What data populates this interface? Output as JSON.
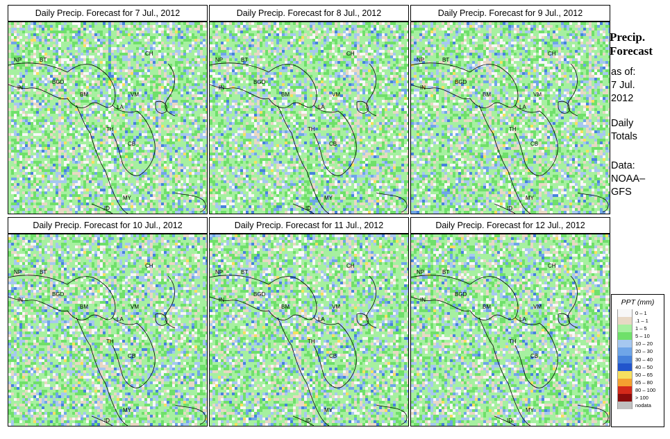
{
  "panels": [
    {
      "title": "Daily Precip. Forecast for  7 Jul., 2012"
    },
    {
      "title": "Daily Precip. Forecast for  8 Jul., 2012"
    },
    {
      "title": "Daily Precip. Forecast for  9 Jul., 2012"
    },
    {
      "title": "Daily Precip. Forecast for  10 Jul., 2012"
    },
    {
      "title": "Daily Precip. Forecast for  11 Jul., 2012"
    },
    {
      "title": "Daily Precip. Forecast for  12 Jul., 2012"
    }
  ],
  "countries": [
    "NP",
    "BT",
    "IN",
    "BGD",
    "CH",
    "BM",
    "VM",
    "LA",
    "TH",
    "CB",
    "MY",
    "ID",
    "CH"
  ],
  "sidebar": {
    "title_line1": "Precip.",
    "title_line2": "Forecast",
    "asof_line1": "as of:",
    "asof_line2": "7 Jul.",
    "asof_line3": "2012",
    "totals_line1": "Daily",
    "totals_line2": "Totals",
    "data_line1": "Data:",
    "data_line2": "NOAA–",
    "data_line3": "GFS"
  },
  "legend": {
    "title": "PPT (mm)",
    "items": [
      {
        "label": "0 – 1",
        "color": "#f7f7f7"
      },
      {
        "label": ".1 – 1",
        "color": "#e8d8c4"
      },
      {
        "label": "1 – 5",
        "color": "#a6f0a0"
      },
      {
        "label": "5 – 10",
        "color": "#6fe06a"
      },
      {
        "label": "10 – 20",
        "color": "#a6c8f0"
      },
      {
        "label": "20 – 30",
        "color": "#6fa6e8"
      },
      {
        "label": "30 – 40",
        "color": "#4682dc"
      },
      {
        "label": "40 – 50",
        "color": "#2255cc"
      },
      {
        "label": "50 – 65",
        "color": "#f6e060"
      },
      {
        "label": "65 – 80",
        "color": "#f5a030"
      },
      {
        "label": "80 – 100",
        "color": "#d42a1a"
      },
      {
        "label": "> 100",
        "color": "#8a0c0c"
      },
      {
        "label": "nodata",
        "color": "#c0c0c0"
      }
    ]
  }
}
